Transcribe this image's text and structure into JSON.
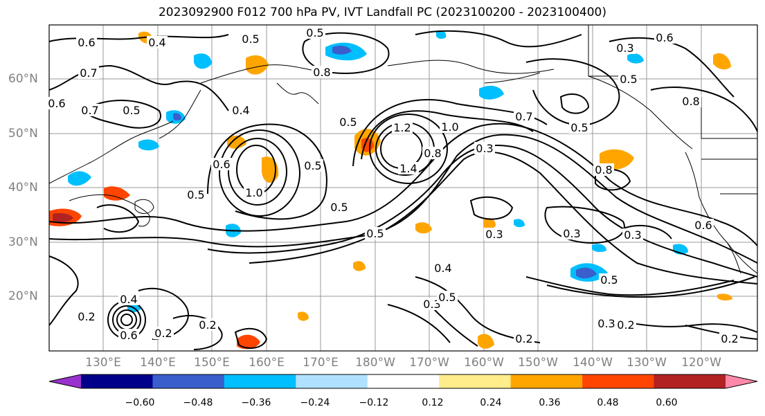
{
  "title": "2023092900 F012 700 hPa PV, IVT Landfall PC (2023100200 - 2023100400)",
  "lat_labels": [
    "60°N",
    "50°N",
    "40°N",
    "30°N",
    "20°N"
  ],
  "lon_labels": [
    "130°E",
    "140°E",
    "150°E",
    "160°E",
    "170°E",
    "180°W",
    "170°W",
    "160°W",
    "150°W",
    "140°W",
    "130°W",
    "120°W"
  ],
  "colorbar": {
    "colors": [
      "#9932cc",
      "#00008b",
      "#3a5fcd",
      "#00bfff",
      "#b0e2ff",
      "#ffffff",
      "#ffec8b",
      "#ffa500",
      "#ff4500",
      "#b22222",
      "#ff88aa"
    ],
    "tick_labels": [
      "−0.60",
      "−0.48",
      "−0.36",
      "−0.24",
      "−0.12",
      "0.12",
      "0.24",
      "0.36",
      "0.48",
      "0.60"
    ]
  },
  "contour_labels": [
    "0.6",
    "0.5",
    "0.4",
    "0.5",
    "0.7",
    "0.8",
    "0.6",
    "0.5",
    "0.7",
    "0.6",
    "0.5",
    "1.2",
    "1.0",
    "1.4",
    "0.8",
    "0.3",
    "0.5",
    "0.8",
    "0.5",
    "0.7",
    "0.8",
    "0.5",
    "0.5",
    "1.0",
    "0.5",
    "0.6",
    "0.5",
    "0.4",
    "0.3",
    "0.3",
    "0.3",
    "0.5",
    "0.3",
    "0.2",
    "0.6",
    "0.2",
    "0.2",
    "0.4",
    "0.6",
    "0.2",
    "0.4",
    "0.3",
    "0.5",
    "0.3",
    "0.2",
    "0.2"
  ]
}
